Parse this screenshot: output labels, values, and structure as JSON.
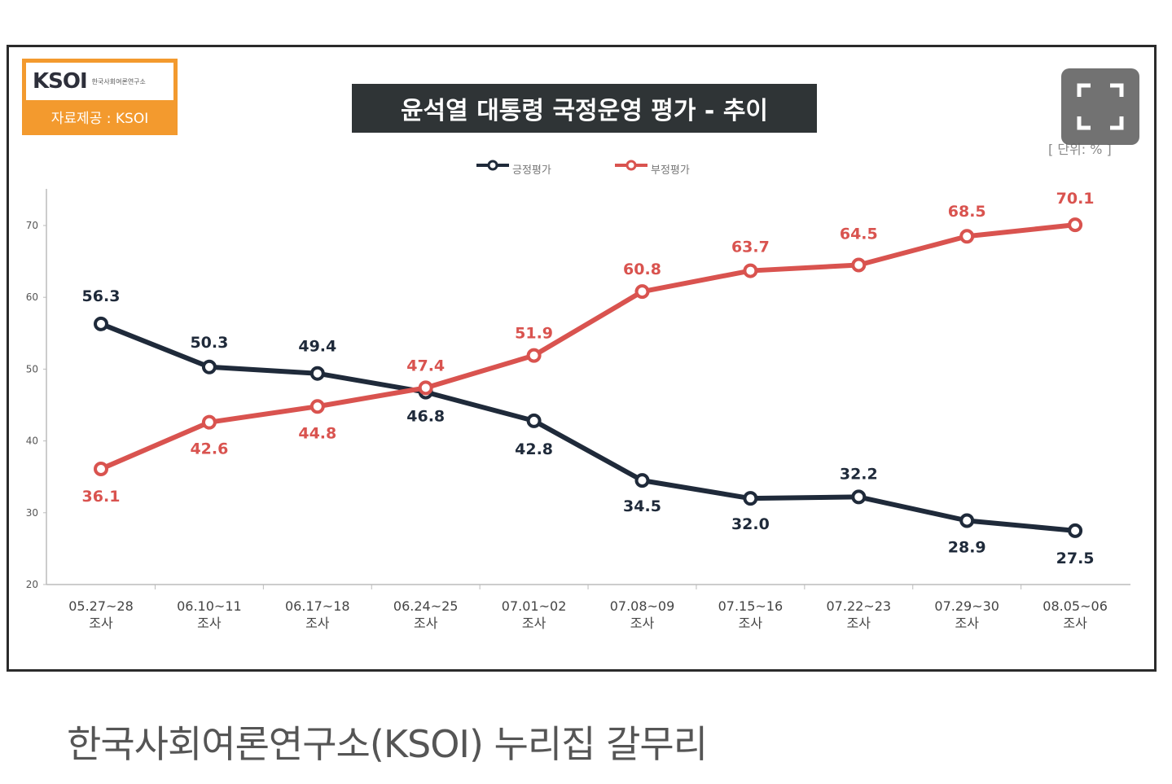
{
  "logo": {
    "text": "KSOI",
    "subtext": "한국사회여론연구소",
    "source": "자료제공 : KSOI"
  },
  "unit_label": "[ 단위: % ]",
  "caption": "한국사회여론연구소(KSOI) 누리집 갈무리",
  "colors": {
    "positive": "#1f2a3a",
    "negative": "#d9534f",
    "title_bg": "#2f3436",
    "logo_bg": "#f39a2e"
  },
  "fullscreen_icon": "fullscreen-icon",
  "chart_data": {
    "type": "line",
    "title": "윤석열 대통령 국정운영 평가 - 추이",
    "categories": [
      [
        "05.27~28",
        "조사"
      ],
      [
        "06.10~11",
        "조사"
      ],
      [
        "06.17~18",
        "조사"
      ],
      [
        "06.24~25",
        "조사"
      ],
      [
        "07.01~02",
        "조사"
      ],
      [
        "07.08~09",
        "조사"
      ],
      [
        "07.15~16",
        "조사"
      ],
      [
        "07.22~23",
        "조사"
      ],
      [
        "07.29~30",
        "조사"
      ],
      [
        "08.05~06",
        "조사"
      ]
    ],
    "series": [
      {
        "name": "긍정평가",
        "color": "#1f2a3a",
        "values": [
          56.3,
          50.3,
          49.4,
          46.8,
          42.8,
          34.5,
          32.0,
          32.2,
          28.9,
          27.5
        ]
      },
      {
        "name": "부정평가",
        "color": "#d9534f",
        "values": [
          36.1,
          42.6,
          44.8,
          47.4,
          51.9,
          60.8,
          63.7,
          64.5,
          68.5,
          70.1
        ]
      }
    ],
    "yticks": [
      20,
      30,
      40,
      50,
      60,
      70
    ],
    "ylim": [
      20,
      75
    ],
    "legend_position": "top-center",
    "grid": false
  }
}
